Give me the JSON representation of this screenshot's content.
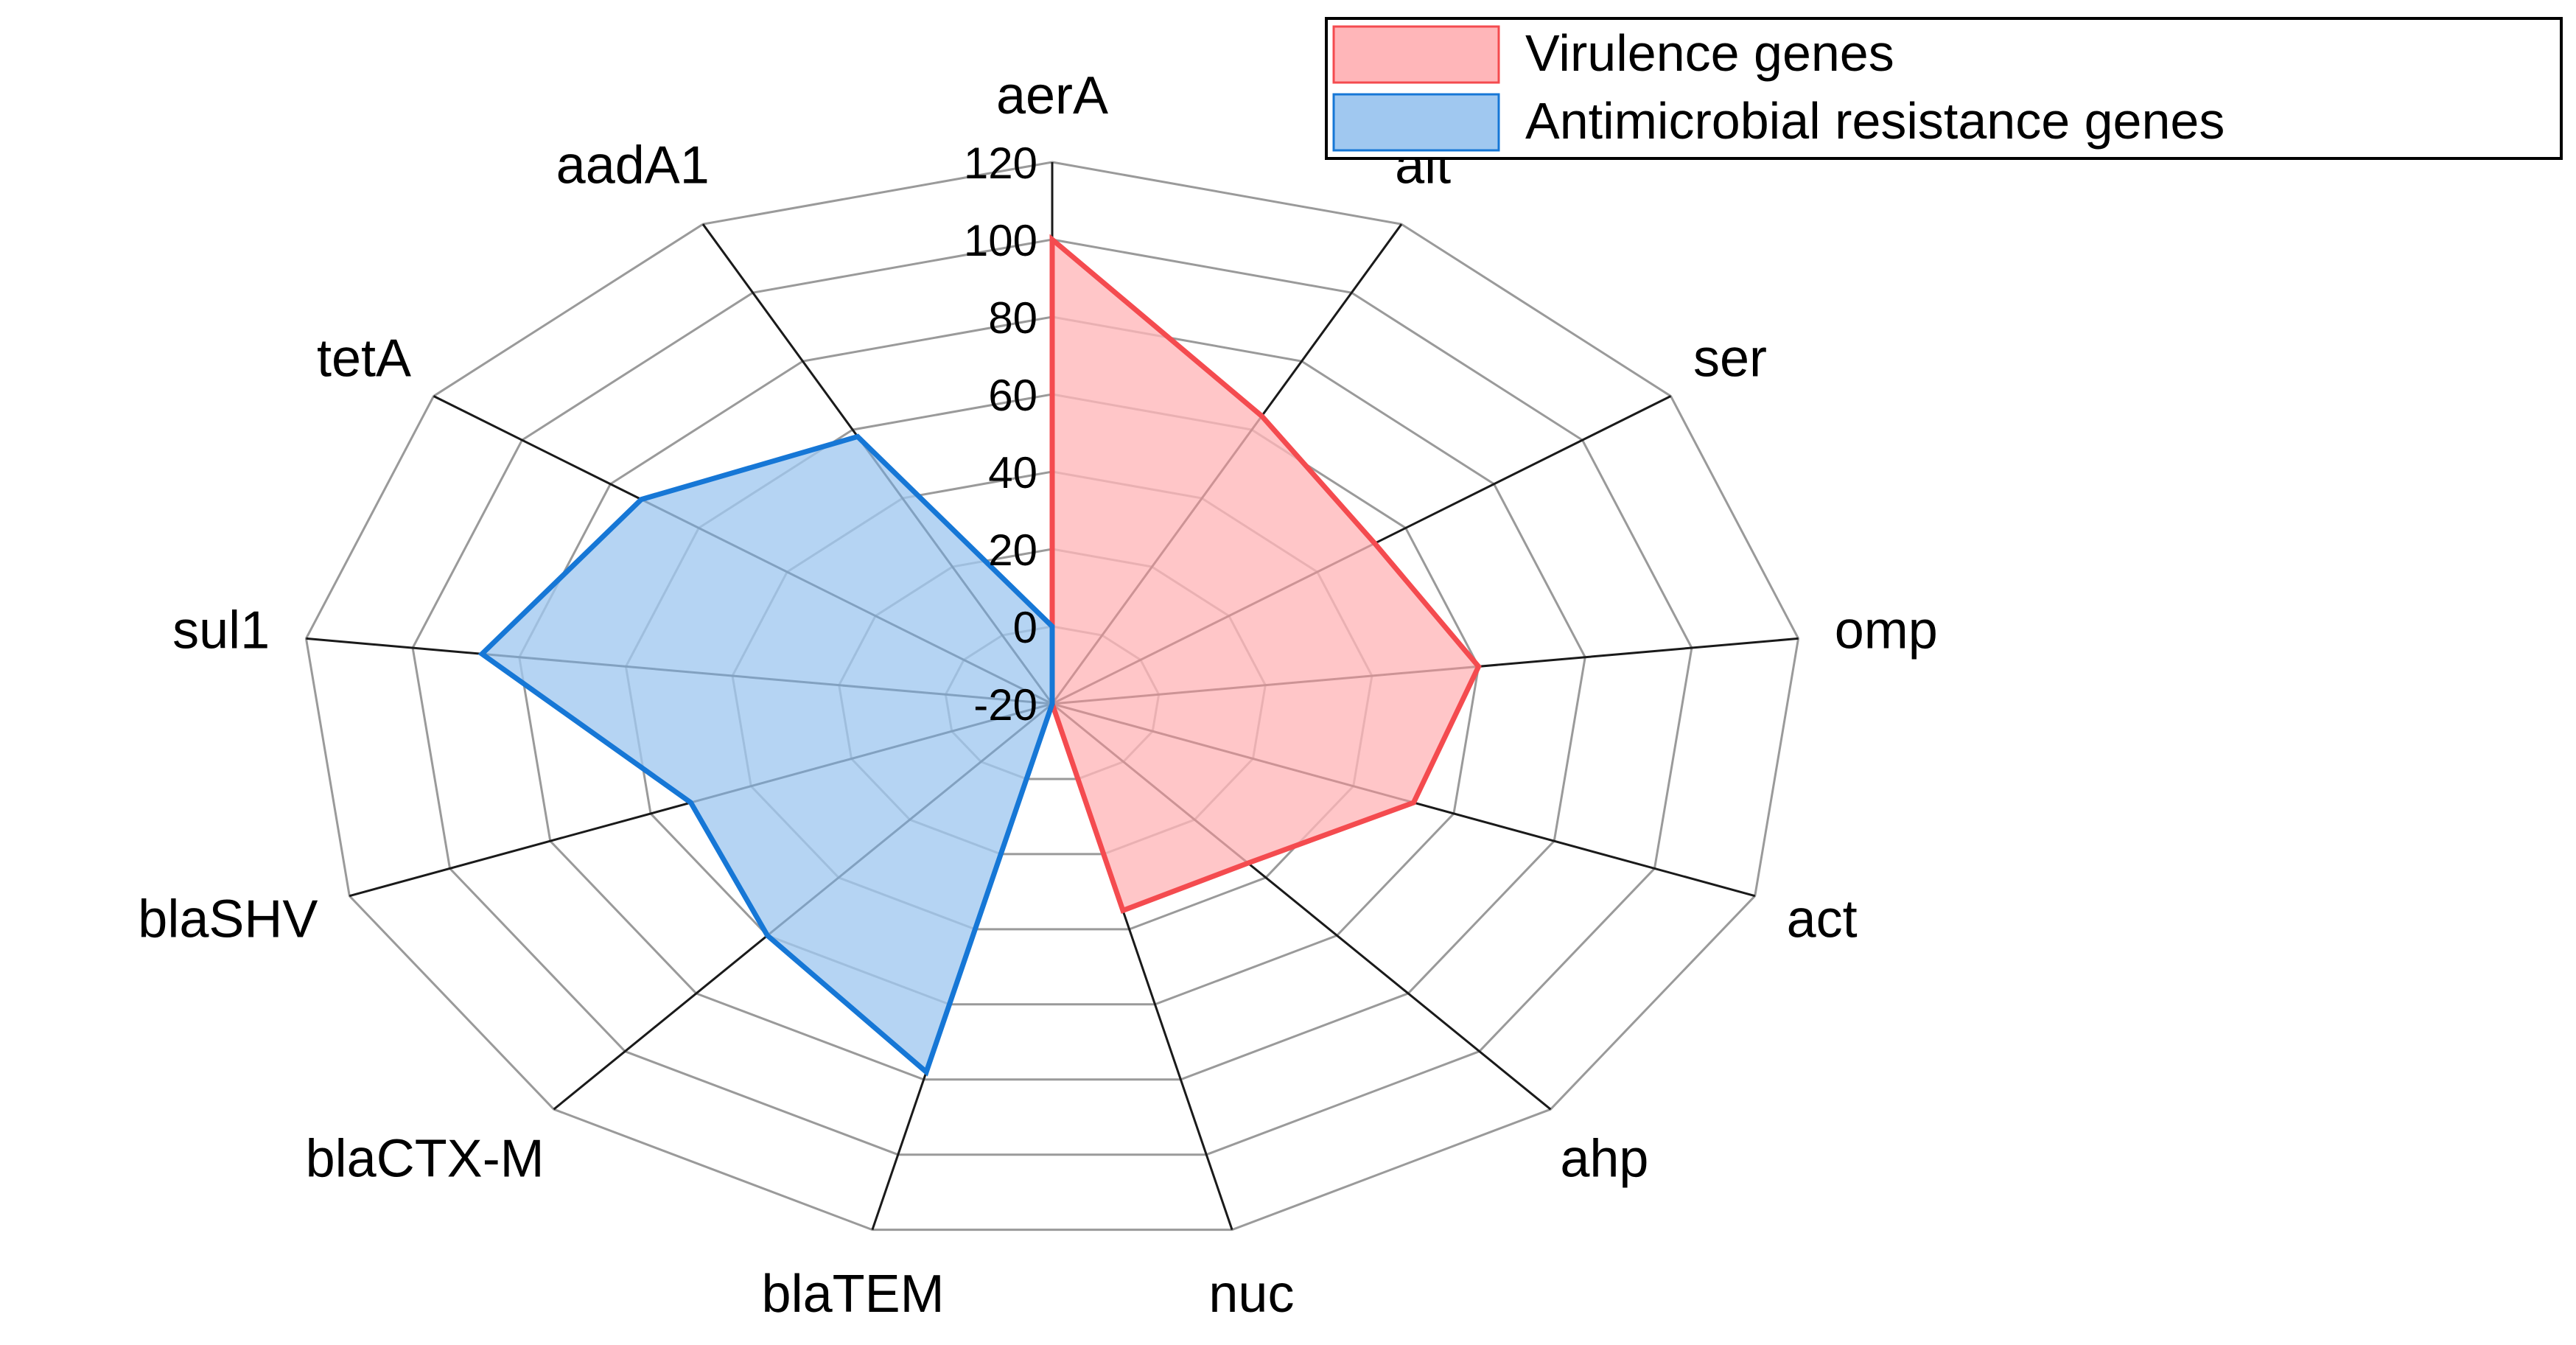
{
  "chart_data": {
    "type": "radar",
    "categories": [
      "aerA",
      "alt",
      "ser",
      "omp",
      "act",
      "ahp",
      "nuc",
      "blaTEM",
      "blaCTX-M",
      "blaSHV",
      "sul1",
      "tetA",
      "aadA1"
    ],
    "rlim": [
      -20,
      120
    ],
    "ticks": [
      -20,
      0,
      20,
      40,
      60,
      80,
      100,
      120
    ],
    "grid": true,
    "legend_position": "top-right",
    "series": [
      {
        "name": "Virulence genes",
        "values": [
          100,
          64,
          53,
          60,
          52,
          35,
          35,
          -20,
          -20,
          -20,
          -20,
          -20,
          -20
        ],
        "fill": "#ffb6b9",
        "stroke": "#f44b4f"
      },
      {
        "name": "Antimicrobial resistance genes",
        "values": [
          0,
          -20,
          -20,
          -20,
          -20,
          -20,
          -20,
          78,
          60,
          52,
          87,
          73,
          58
        ],
        "fill": "#a0c8f0",
        "stroke": "#1677d6"
      }
    ]
  }
}
